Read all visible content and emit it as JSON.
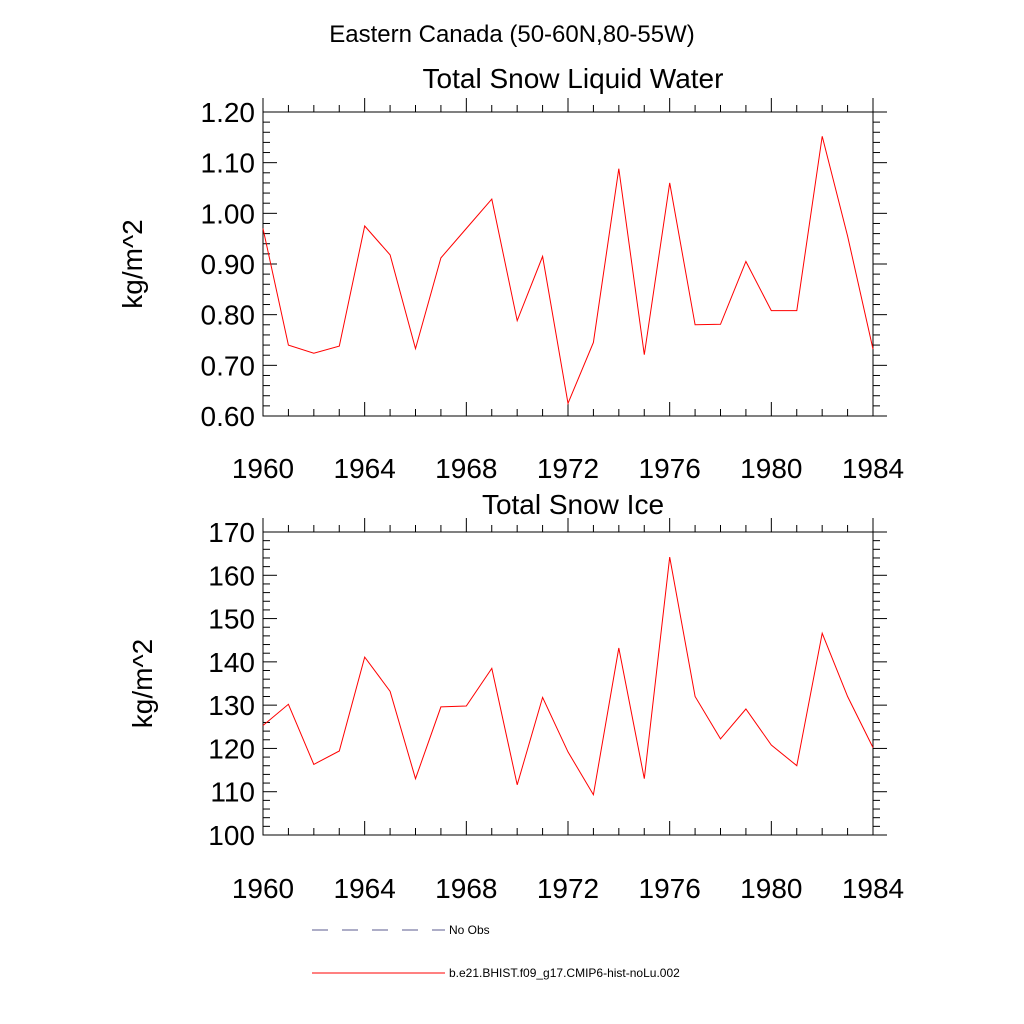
{
  "figure": {
    "title": "Eastern Canada (50-60N,80-55W)"
  },
  "chart_data": [
    {
      "type": "line",
      "title": "Total Snow Liquid Water",
      "xlabel": "",
      "ylabel": "kg/m^2",
      "xlim": [
        1960,
        1984
      ],
      "ylim": [
        0.6,
        1.2
      ],
      "x_ticks": [
        1960,
        1964,
        1968,
        1972,
        1976,
        1980,
        1984
      ],
      "x_tick_labels": [
        "1960",
        "1964",
        "1968",
        "1972",
        "1976",
        "1980",
        "1984"
      ],
      "y_ticks": [
        0.6,
        0.7,
        0.8,
        0.9,
        1.0,
        1.1,
        1.2
      ],
      "y_tick_labels": [
        "0.60",
        "0.70",
        "0.80",
        "0.90",
        "1.00",
        "1.10",
        "1.20"
      ],
      "series": [
        {
          "name": "b.e21.BHIST.f09_g17.CMIP6-hist-noLu.002",
          "color": "#ff0000",
          "x": [
            1960,
            1961,
            1962,
            1963,
            1964,
            1965,
            1966,
            1967,
            1968,
            1969,
            1970,
            1971,
            1972,
            1973,
            1974,
            1975,
            1976,
            1977,
            1978,
            1979,
            1980,
            1981,
            1982,
            1983,
            1984
          ],
          "values": [
            0.97,
            0.74,
            0.724,
            0.738,
            0.975,
            0.918,
            0.733,
            0.912,
            0.97,
            1.028,
            0.788,
            0.915,
            0.625,
            0.745,
            1.088,
            0.721,
            1.06,
            0.78,
            0.781,
            0.905,
            0.808,
            0.808,
            1.152,
            0.955,
            0.732
          ]
        }
      ]
    },
    {
      "type": "line",
      "title": "Total Snow Ice",
      "xlabel": "",
      "ylabel": "kg/m^2",
      "xlim": [
        1960,
        1984
      ],
      "ylim": [
        100,
        170
      ],
      "x_ticks": [
        1960,
        1964,
        1968,
        1972,
        1976,
        1980,
        1984
      ],
      "x_tick_labels": [
        "1960",
        "1964",
        "1968",
        "1972",
        "1976",
        "1980",
        "1984"
      ],
      "y_ticks": [
        100,
        110,
        120,
        130,
        140,
        150,
        160,
        170
      ],
      "y_tick_labels": [
        "100",
        "110",
        "120",
        "130",
        "140",
        "150",
        "160",
        "170"
      ],
      "series": [
        {
          "name": "b.e21.BHIST.f09_g17.CMIP6-hist-noLu.002",
          "color": "#ff0000",
          "x": [
            1960,
            1961,
            1962,
            1963,
            1964,
            1965,
            1966,
            1967,
            1968,
            1969,
            1970,
            1971,
            1972,
            1973,
            1974,
            1975,
            1976,
            1977,
            1978,
            1979,
            1980,
            1981,
            1982,
            1983,
            1984
          ],
          "values": [
            125.3,
            130.2,
            116.3,
            119.4,
            141.1,
            133.2,
            113.0,
            129.6,
            129.8,
            138.5,
            111.6,
            131.8,
            119.2,
            109.3,
            143.2,
            113.0,
            164.2,
            132.0,
            122.2,
            129.1,
            120.8,
            116.0,
            146.6,
            132.0,
            120.2
          ]
        }
      ]
    }
  ],
  "legend": {
    "placement": "bottom",
    "entries": [
      {
        "label": "No Obs",
        "color": "#5b5b8f",
        "style": "dashed"
      },
      {
        "label": "b.e21.BHIST.f09_g17.CMIP6-hist-noLu.002",
        "color": "#ff0000",
        "style": "solid"
      }
    ]
  }
}
